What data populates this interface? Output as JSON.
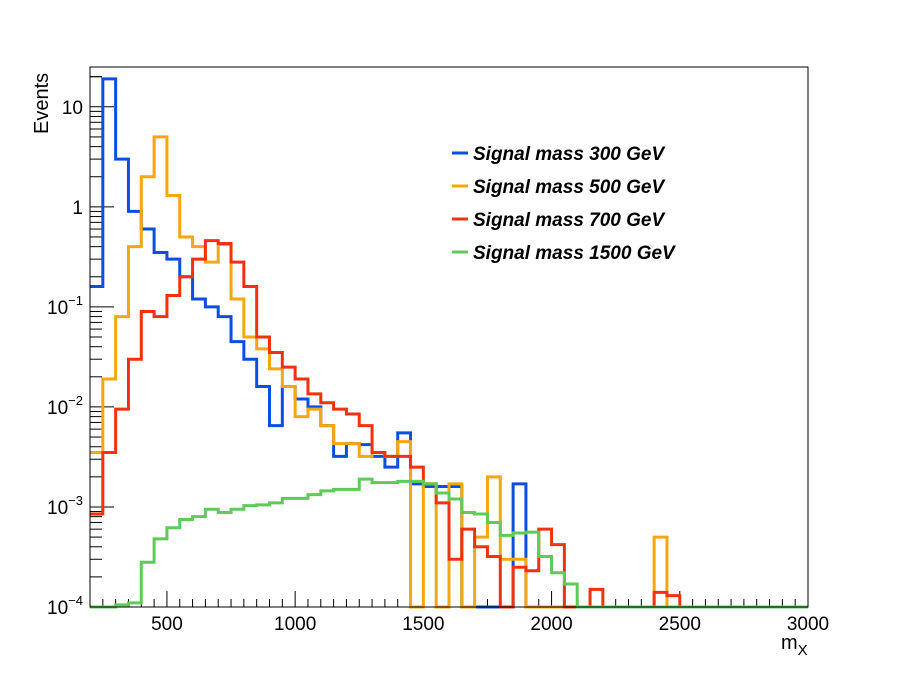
{
  "chart_data": {
    "type": "line",
    "style": "step histogram",
    "xlabel": "m",
    "xlabel_sub": "X",
    "ylabel": "Events",
    "xlim": [
      200,
      3000
    ],
    "ylim": [
      0.0001,
      25
    ],
    "yscale": "log",
    "bin_width": 50,
    "x_tick_labels": [
      "500",
      "1000",
      "1500",
      "2000",
      "2500",
      "3000"
    ],
    "x_tick_values": [
      500,
      1000,
      1500,
      2000,
      2500,
      3000
    ],
    "y_tick_labels": [
      {
        "value": 10,
        "base": "10",
        "exp": ""
      },
      {
        "value": 1,
        "base": "1",
        "exp": ""
      },
      {
        "value": 0.1,
        "base": "10",
        "exp": "−1"
      },
      {
        "value": 0.01,
        "base": "10",
        "exp": "−2"
      },
      {
        "value": 0.001,
        "base": "10",
        "exp": "−3"
      },
      {
        "value": 0.0001,
        "base": "10",
        "exp": "−4"
      }
    ],
    "legend_position": "top-right",
    "series": [
      {
        "name": "Signal mass 300 GeV",
        "color": "#0b4fe0",
        "bin_starts": [
          200,
          250,
          300,
          350,
          400,
          450,
          500,
          550,
          600,
          650,
          700,
          750,
          800,
          850,
          900,
          950,
          1000,
          1050,
          1100,
          1150,
          1200,
          1250,
          1300,
          1350,
          1400,
          1450,
          1500,
          1550,
          1600,
          1650,
          1700,
          1750,
          1800,
          1850,
          1900,
          1950,
          2000,
          2050,
          2100,
          2150,
          2200,
          2250,
          2300,
          2350,
          2400,
          2450,
          2500,
          2550,
          2600,
          2650,
          2700,
          2750,
          2800,
          2850,
          2900,
          2950
        ],
        "values": [
          0.16,
          19,
          3,
          0.9,
          0.6,
          0.35,
          0.3,
          0.2,
          0.12,
          0.1,
          0.08,
          0.045,
          0.03,
          0.016,
          0.0065,
          0.016,
          0.012,
          0.01,
          0.0065,
          0.0032,
          0.0043,
          0.0042,
          0.0032,
          0.0025,
          0.0055,
          0.0017,
          0.0016,
          0.0016,
          0.0016,
          0.0001,
          0.0001,
          0.0001,
          0.0001,
          0.0017,
          0.0001,
          0.0001,
          0.0001,
          0.0001,
          0.0001,
          0.0001,
          0.0001,
          0.0001,
          0.0001,
          0.0001,
          0.0001,
          0.0001,
          0.0001,
          0.0001,
          0.0001,
          0.0001,
          0.0001,
          0.0001,
          0.0001,
          0.0001,
          0.0001,
          0.0001
        ]
      },
      {
        "name": "Signal mass 500 GeV",
        "color": "#f5a611",
        "bin_starts": [
          200,
          250,
          300,
          350,
          400,
          450,
          500,
          550,
          600,
          650,
          700,
          750,
          800,
          850,
          900,
          950,
          1000,
          1050,
          1100,
          1150,
          1200,
          1250,
          1300,
          1350,
          1400,
          1450,
          1500,
          1550,
          1600,
          1650,
          1700,
          1750,
          1800,
          1850,
          1900,
          1950,
          2000,
          2050,
          2100,
          2150,
          2200,
          2250,
          2300,
          2350,
          2400,
          2450,
          2500,
          2550,
          2600,
          2650,
          2700,
          2750,
          2800,
          2850,
          2900,
          2950
        ],
        "values": [
          0.0035,
          0.019,
          0.08,
          0.4,
          2,
          5,
          1.3,
          0.5,
          0.4,
          0.28,
          0.42,
          0.12,
          0.05,
          0.038,
          0.024,
          0.016,
          0.008,
          0.0095,
          0.0065,
          0.0043,
          0.0043,
          0.0032,
          0.0035,
          0.0032,
          0.0045,
          0.0001,
          0.0017,
          0.0001,
          0.0017,
          0.0001,
          0.0005,
          0.002,
          0.0003,
          0.0003,
          0.0001,
          0.0001,
          0.0001,
          0.0001,
          0.0001,
          0.0001,
          0.0001,
          0.0001,
          0.0001,
          0.0001,
          0.0005,
          0.0001,
          0.0001,
          0.0001,
          0.0001,
          0.0001,
          0.0001,
          0.0001,
          0.0001,
          0.0001,
          0.0001,
          0.0001
        ]
      },
      {
        "name": "Signal mass 700 GeV",
        "color": "#f2320f",
        "bin_starts": [
          200,
          250,
          300,
          350,
          400,
          450,
          500,
          550,
          600,
          650,
          700,
          750,
          800,
          850,
          900,
          950,
          1000,
          1050,
          1100,
          1150,
          1200,
          1250,
          1300,
          1350,
          1400,
          1450,
          1500,
          1550,
          1600,
          1650,
          1700,
          1750,
          1800,
          1850,
          1900,
          1950,
          2000,
          2050,
          2100,
          2150,
          2200,
          2250,
          2300,
          2350,
          2400,
          2450,
          2500,
          2550,
          2600,
          2650,
          2700,
          2750,
          2800,
          2850,
          2900,
          2950
        ],
        "values": [
          0.00085,
          0.0035,
          0.0095,
          0.03,
          0.09,
          0.08,
          0.13,
          0.2,
          0.3,
          0.46,
          0.43,
          0.28,
          0.16,
          0.05,
          0.035,
          0.025,
          0.019,
          0.0135,
          0.011,
          0.0095,
          0.0085,
          0.0065,
          0.0035,
          0.0032,
          0.0032,
          0.0025,
          0.0017,
          0.0011,
          0.0003,
          0.0006,
          0.0004,
          0.00032,
          0.0001,
          0.00025,
          0.00023,
          0.0006,
          0.00042,
          0.0001,
          0.0001,
          0.00015,
          0.0001,
          0.0001,
          0.0001,
          0.0001,
          0.00014,
          0.00013,
          0.0001,
          0.0001,
          0.0001,
          0.0001,
          0.0001,
          0.0001,
          0.0001,
          0.0001,
          0.0001,
          0.0001
        ]
      },
      {
        "name": "Signal mass 1500 GeV",
        "color": "#5ecb58",
        "bin_starts": [
          200,
          250,
          300,
          350,
          400,
          450,
          500,
          550,
          600,
          650,
          700,
          750,
          800,
          850,
          900,
          950,
          1000,
          1050,
          1100,
          1150,
          1200,
          1250,
          1300,
          1350,
          1400,
          1450,
          1500,
          1550,
          1600,
          1650,
          1700,
          1750,
          1800,
          1850,
          1900,
          1950,
          2000,
          2050,
          2100,
          2150,
          2200,
          2250,
          2300,
          2350,
          2400,
          2450,
          2500,
          2550,
          2600,
          2650,
          2700,
          2750,
          2800,
          2850,
          2900,
          2950
        ],
        "values": [
          0.0001,
          0.0001,
          0.000105,
          0.00011,
          0.00028,
          0.00048,
          0.00062,
          0.00075,
          0.0008,
          0.00095,
          0.00088,
          0.00095,
          0.00103,
          0.00105,
          0.0011,
          0.00122,
          0.00122,
          0.00133,
          0.00145,
          0.0015,
          0.0015,
          0.0019,
          0.00175,
          0.00175,
          0.0018,
          0.0018,
          0.0017,
          0.00138,
          0.0012,
          0.00088,
          0.00085,
          0.0007,
          0.00052,
          0.00055,
          0.00056,
          0.00032,
          0.00022,
          0.00017,
          0.0001,
          0.0001,
          0.0001,
          0.0001,
          0.0001,
          0.0001,
          0.0001,
          0.0001,
          0.0001,
          0.0001,
          0.0001,
          0.0001,
          0.0001,
          0.0001,
          0.0001,
          0.0001,
          0.0001,
          0.0001
        ]
      }
    ]
  }
}
